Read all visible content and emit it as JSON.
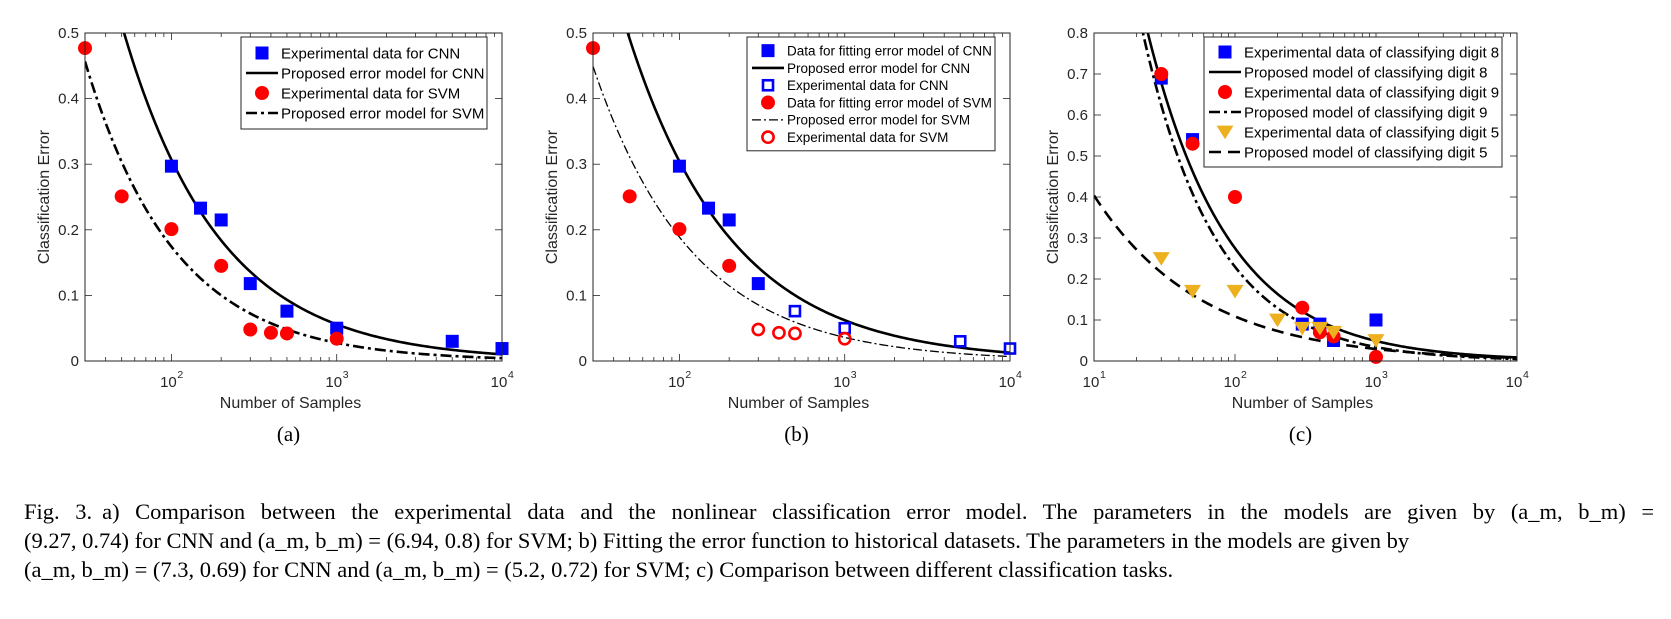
{
  "figure": {
    "caption": {
      "label": "Fig. 3.",
      "line1": "a) Comparison between the experimental data and the nonlinear classification error model. The parameters in the models are given by (a_m, b_m) =",
      "line2": "(9.27, 0.74) for CNN and (a_m, b_m) = (6.94, 0.8) for SVM; b) Fitting the error function to historical datasets. The parameters in the models are given by",
      "line3": "(a_m, b_m) = (7.3, 0.69) for CNN and (a_m, b_m) = (5.2, 0.72) for SVM; c) Comparison between different classification tasks."
    }
  },
  "chart_data": [
    {
      "type": "scatter",
      "panel_label": "(a)",
      "xlabel": "Number of Samples",
      "ylabel": "Classification Error",
      "xscale": "log",
      "xlim": [
        30,
        10000
      ],
      "ylim": [
        0,
        0.5
      ],
      "xticks": [
        100,
        1000,
        10000
      ],
      "xtick_labels": [
        [
          "10",
          "2"
        ],
        [
          "10",
          "3"
        ],
        [
          "10",
          "4"
        ]
      ],
      "yticks": [
        0,
        0.1,
        0.2,
        0.3,
        0.4,
        0.5
      ],
      "ytick_labels": [
        "0",
        "0.1",
        "0.2",
        "0.3",
        "0.4",
        "0.5"
      ],
      "legend_position": "top-right",
      "series": [
        {
          "name": "Experimental data for CNN",
          "kind": "marker",
          "marker": "square-filled",
          "color": "#0000ff",
          "x": [
            100,
            150,
            200,
            300,
            500,
            1000,
            5000,
            10000
          ],
          "y": [
            0.297,
            0.233,
            0.215,
            0.118,
            0.076,
            0.05,
            0.03,
            0.019
          ]
        },
        {
          "name": "Proposed error model for CNN",
          "kind": "line",
          "dash": "solid",
          "color": "#000000",
          "a": 9.27,
          "b": 0.74
        },
        {
          "name": "Experimental data for SVM",
          "kind": "marker",
          "marker": "circle-filled",
          "color": "#ff0000",
          "x": [
            30,
            50,
            100,
            200,
            300,
            400,
            500,
            1000
          ],
          "y": [
            0.477,
            0.251,
            0.201,
            0.145,
            0.048,
            0.043,
            0.042,
            0.034
          ]
        },
        {
          "name": "Proposed error model for SVM",
          "kind": "line",
          "dash": "dashdot",
          "color": "#000000",
          "a": 6.94,
          "b": 0.8
        }
      ]
    },
    {
      "type": "scatter",
      "panel_label": "(b)",
      "xlabel": "Number of Samples",
      "ylabel": "Classification Error",
      "xscale": "log",
      "xlim": [
        30,
        10000
      ],
      "ylim": [
        0,
        0.5
      ],
      "xticks": [
        100,
        1000,
        10000
      ],
      "xtick_labels": [
        [
          "10",
          "2"
        ],
        [
          "10",
          "3"
        ],
        [
          "10",
          "4"
        ]
      ],
      "yticks": [
        0,
        0.1,
        0.2,
        0.3,
        0.4,
        0.5
      ],
      "ytick_labels": [
        "0",
        "0.1",
        "0.2",
        "0.3",
        "0.4",
        "0.5"
      ],
      "legend_position": "top-right",
      "series": [
        {
          "name": "Data for fitting error model of CNN",
          "kind": "marker",
          "marker": "square-filled",
          "color": "#0000ff",
          "x": [
            100,
            150,
            200,
            300
          ],
          "y": [
            0.297,
            0.233,
            0.215,
            0.118
          ]
        },
        {
          "name": "Proposed error model for CNN",
          "kind": "line",
          "dash": "solid",
          "color": "#000000",
          "a": 7.3,
          "b": 0.69
        },
        {
          "name": "Experimental data for CNN",
          "kind": "marker",
          "marker": "square-open",
          "color": "#0000ff",
          "x": [
            500,
            1000,
            5000,
            10000
          ],
          "y": [
            0.076,
            0.05,
            0.03,
            0.019
          ]
        },
        {
          "name": "Data for fitting error model of SVM",
          "kind": "marker",
          "marker": "circle-filled",
          "color": "#ff0000",
          "x": [
            30,
            50,
            100,
            200
          ],
          "y": [
            0.477,
            0.251,
            0.201,
            0.145
          ]
        },
        {
          "name": "Proposed error model for SVM",
          "kind": "line",
          "dash": "dashdot-thin",
          "color": "#000000",
          "a": 5.2,
          "b": 0.72
        },
        {
          "name": "Experimental data for SVM",
          "kind": "marker",
          "marker": "circle-open",
          "color": "#ff0000",
          "x": [
            300,
            400,
            500,
            1000
          ],
          "y": [
            0.048,
            0.043,
            0.042,
            0.034
          ]
        }
      ]
    },
    {
      "type": "scatter",
      "panel_label": "(c)",
      "xlabel": "Number of Samples",
      "ylabel": "Classification Error",
      "xscale": "log",
      "xlim": [
        10,
        10000
      ],
      "ylim": [
        0,
        0.8
      ],
      "xticks": [
        10,
        100,
        1000,
        10000
      ],
      "xtick_labels": [
        [
          "10",
          "1"
        ],
        [
          "10",
          "2"
        ],
        [
          "10",
          "3"
        ],
        [
          "10",
          "4"
        ]
      ],
      "yticks": [
        0,
        0.1,
        0.2,
        0.3,
        0.4,
        0.5,
        0.6,
        0.7,
        0.8
      ],
      "ytick_labels": [
        "0",
        "0.1",
        "0.2",
        "0.3",
        "0.4",
        "0.5",
        "0.6",
        "0.7",
        "0.8"
      ],
      "legend_position": "top-right",
      "series": [
        {
          "name": "Experimental data of classifying digit 8",
          "kind": "marker",
          "marker": "square-filled",
          "color": "#0000ff",
          "x": [
            30,
            50,
            300,
            400,
            500,
            1000
          ],
          "y": [
            0.69,
            0.54,
            0.09,
            0.09,
            0.05,
            0.1
          ]
        },
        {
          "name": "Proposed model of classifying digit 8",
          "kind": "line",
          "dash": "solid",
          "color": "#000000",
          "a": 8.7,
          "b": 0.75
        },
        {
          "name": "Experimental data of classifying digit 9",
          "kind": "marker",
          "marker": "circle-filled",
          "color": "#ff0000",
          "x": [
            30,
            50,
            100,
            300,
            400,
            500,
            1000
          ],
          "y": [
            0.7,
            0.53,
            0.4,
            0.13,
            0.07,
            0.06,
            0.01
          ]
        },
        {
          "name": "Proposed model of classifying digit 9",
          "kind": "line",
          "dash": "dashdot",
          "color": "#000000",
          "a": 10.5,
          "b": 0.83
        },
        {
          "name": "Experimental data of classifying digit 5",
          "kind": "marker",
          "marker": "triangle-down-filled",
          "color": "#edb120",
          "x": [
            30,
            50,
            100,
            200,
            300,
            400,
            500,
            1000
          ],
          "y": [
            0.25,
            0.17,
            0.17,
            0.1,
            0.08,
            0.08,
            0.07,
            0.05
          ]
        },
        {
          "name": "Proposed model of classifying digit 5",
          "kind": "line",
          "dash": "dashed",
          "color": "#000000",
          "a": 1.5,
          "b": 0.57
        }
      ]
    }
  ]
}
